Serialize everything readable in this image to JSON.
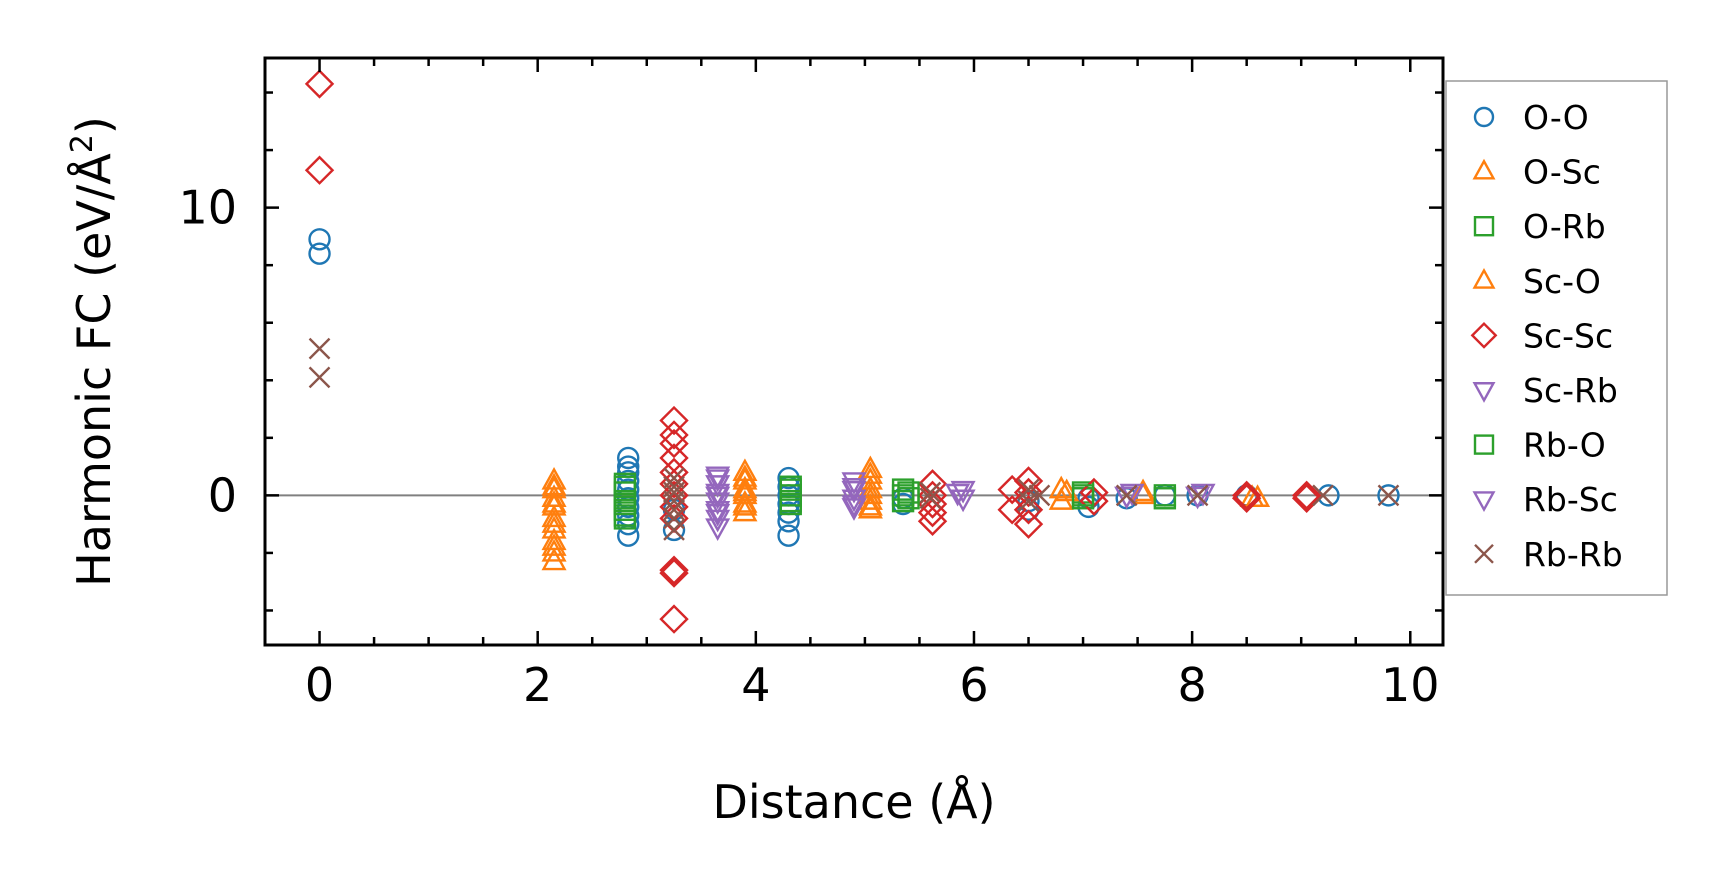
{
  "chart_data": {
    "type": "scatter",
    "xlabel": "Distance (Å)",
    "ylabel_main": "Harmonic FC (eV/Å",
    "ylabel_sup": "2",
    "ylabel_close": ")",
    "xlim": [
      -0.5,
      10.3
    ],
    "ylim": [
      -5.2,
      15.2
    ],
    "x_ticks": [
      0,
      2,
      4,
      6,
      8,
      10
    ],
    "x_tick_labels": [
      "0",
      "2",
      "4",
      "6",
      "8",
      "10"
    ],
    "y_ticks": [
      0,
      10
    ],
    "y_tick_labels": [
      "0",
      "10"
    ],
    "x_minor_step": 0.5,
    "y_minor_step": 2,
    "zero_line": true,
    "grid": false,
    "legend_position": "outside-right",
    "series": [
      {
        "name": "O-O",
        "marker": "circle",
        "color": "#1f77b4",
        "points": [
          [
            0,
            8.9
          ],
          [
            0,
            8.4
          ],
          [
            2.83,
            1.3
          ],
          [
            2.83,
            1.0
          ],
          [
            2.83,
            0.8
          ],
          [
            2.83,
            0.5
          ],
          [
            2.83,
            0.2
          ],
          [
            2.83,
            -0.1
          ],
          [
            2.83,
            -0.4
          ],
          [
            2.83,
            -0.7
          ],
          [
            2.83,
            -1.0
          ],
          [
            2.83,
            -1.4
          ],
          [
            3.25,
            -0.5
          ],
          [
            3.25,
            -1.2
          ],
          [
            4.3,
            0.6
          ],
          [
            4.3,
            0.3
          ],
          [
            4.3,
            0.0
          ],
          [
            4.3,
            -0.3
          ],
          [
            4.3,
            -0.6
          ],
          [
            4.3,
            -0.9
          ],
          [
            4.3,
            -1.4
          ],
          [
            5.35,
            -0.1
          ],
          [
            5.35,
            -0.3
          ],
          [
            6.5,
            -0.5
          ],
          [
            6.5,
            -0.2
          ],
          [
            7.05,
            -0.4
          ],
          [
            7.05,
            -0.1
          ],
          [
            7.4,
            -0.1
          ],
          [
            7.75,
            0.0
          ],
          [
            8.05,
            0.0
          ],
          [
            8.5,
            0.0
          ],
          [
            9.25,
            0.0
          ],
          [
            9.8,
            0.0
          ]
        ]
      },
      {
        "name": "O-Sc",
        "marker": "triangle-up",
        "color": "#ff7f0e",
        "points": [
          [
            2.15,
            0.5
          ],
          [
            2.15,
            0.2
          ],
          [
            2.15,
            -0.1
          ],
          [
            2.15,
            -0.4
          ],
          [
            2.15,
            -0.8
          ],
          [
            2.15,
            -1.2
          ],
          [
            2.15,
            -1.6
          ],
          [
            2.15,
            -2.0
          ],
          [
            2.15,
            -2.3
          ],
          [
            3.9,
            0.8
          ],
          [
            3.9,
            0.5
          ],
          [
            3.9,
            0.2
          ],
          [
            3.9,
            0.0
          ],
          [
            3.9,
            -0.3
          ],
          [
            3.9,
            -0.6
          ],
          [
            5.05,
            0.9
          ],
          [
            5.05,
            0.5
          ],
          [
            5.05,
            0.2
          ],
          [
            5.05,
            -0.2
          ],
          [
            5.05,
            -0.5
          ],
          [
            6.8,
            0.2
          ],
          [
            6.8,
            -0.2
          ],
          [
            7.55,
            0.1
          ],
          [
            8.55,
            -0.1
          ]
        ]
      },
      {
        "name": "O-Rb",
        "marker": "square",
        "color": "#2ca02c",
        "points": [
          [
            2.8,
            0.4
          ],
          [
            2.8,
            0.1
          ],
          [
            2.8,
            -0.2
          ],
          [
            2.8,
            -0.5
          ],
          [
            2.8,
            -0.8
          ],
          [
            4.32,
            0.3
          ],
          [
            4.32,
            0.0
          ],
          [
            4.32,
            -0.3
          ],
          [
            5.35,
            0.2
          ],
          [
            5.35,
            0.0
          ],
          [
            5.35,
            -0.2
          ],
          [
            7.0,
            0.1
          ],
          [
            7.0,
            -0.1
          ],
          [
            7.75,
            0.0
          ]
        ]
      },
      {
        "name": "Sc-O",
        "marker": "triangle-up",
        "color": "#ff7f0e",
        "points": [
          [
            2.15,
            0.3
          ],
          [
            2.15,
            -0.3
          ],
          [
            2.15,
            -1.0
          ],
          [
            2.15,
            -1.8
          ],
          [
            3.9,
            0.6
          ],
          [
            3.9,
            0.1
          ],
          [
            3.9,
            -0.4
          ],
          [
            5.05,
            0.7
          ],
          [
            5.05,
            0.0
          ],
          [
            5.05,
            -0.4
          ],
          [
            6.85,
            0.1
          ],
          [
            7.55,
            0.0
          ],
          [
            8.6,
            -0.1
          ]
        ]
      },
      {
        "name": "Sc-Sc",
        "marker": "diamond",
        "color": "#d62728",
        "points": [
          [
            0,
            14.3
          ],
          [
            0,
            11.3
          ],
          [
            3.25,
            2.6
          ],
          [
            3.25,
            2.1
          ],
          [
            3.25,
            1.8
          ],
          [
            3.25,
            1.3
          ],
          [
            3.25,
            0.8
          ],
          [
            3.25,
            0.4
          ],
          [
            3.25,
            0.0
          ],
          [
            3.25,
            -0.4
          ],
          [
            3.25,
            -0.8
          ],
          [
            3.25,
            -2.6
          ],
          [
            3.25,
            -2.7
          ],
          [
            3.25,
            -4.3
          ],
          [
            5.62,
            0.4
          ],
          [
            5.62,
            0.0
          ],
          [
            5.62,
            -0.3
          ],
          [
            5.62,
            -0.6
          ],
          [
            5.62,
            -0.9
          ],
          [
            6.35,
            0.2
          ],
          [
            6.35,
            -0.5
          ],
          [
            6.5,
            0.5
          ],
          [
            6.5,
            0.1
          ],
          [
            6.5,
            -0.5
          ],
          [
            6.5,
            -1.0
          ],
          [
            7.1,
            0.1
          ],
          [
            7.1,
            -0.2
          ],
          [
            8.5,
            0.0
          ],
          [
            8.5,
            -0.1
          ],
          [
            9.05,
            0.0
          ],
          [
            9.05,
            -0.1
          ]
        ]
      },
      {
        "name": "Sc-Rb",
        "marker": "triangle-down",
        "color": "#9467bd",
        "points": [
          [
            3.65,
            0.7
          ],
          [
            3.65,
            0.4
          ],
          [
            3.65,
            0.1
          ],
          [
            3.65,
            -0.2
          ],
          [
            3.65,
            -0.5
          ],
          [
            3.65,
            -0.8
          ],
          [
            3.65,
            -1.1
          ],
          [
            4.9,
            0.5
          ],
          [
            4.9,
            0.2
          ],
          [
            4.9,
            -0.1
          ],
          [
            4.9,
            -0.4
          ],
          [
            5.9,
            0.2
          ],
          [
            5.9,
            -0.1
          ],
          [
            7.45,
            0.1
          ],
          [
            8.1,
            0.1
          ]
        ]
      },
      {
        "name": "Rb-O",
        "marker": "square",
        "color": "#2ca02c",
        "points": [
          [
            2.8,
            0.3
          ],
          [
            2.8,
            -0.3
          ],
          [
            2.8,
            -0.7
          ],
          [
            4.32,
            0.2
          ],
          [
            4.32,
            -0.2
          ],
          [
            5.4,
            0.1
          ],
          [
            5.4,
            -0.1
          ],
          [
            7.0,
            0.0
          ],
          [
            7.75,
            -0.1
          ]
        ]
      },
      {
        "name": "Rb-Sc",
        "marker": "triangle-down",
        "color": "#9467bd",
        "points": [
          [
            3.65,
            0.6
          ],
          [
            3.65,
            0.0
          ],
          [
            3.65,
            -0.6
          ],
          [
            4.9,
            0.3
          ],
          [
            4.9,
            -0.3
          ],
          [
            5.85,
            0.1
          ],
          [
            7.4,
            0.0
          ],
          [
            8.05,
            0.0
          ]
        ]
      },
      {
        "name": "Rb-Rb",
        "marker": "x",
        "color": "#8c564b",
        "points": [
          [
            0,
            5.1
          ],
          [
            0,
            4.1
          ],
          [
            3.25,
            0.6
          ],
          [
            3.25,
            0.3
          ],
          [
            3.25,
            0.1
          ],
          [
            3.25,
            -0.2
          ],
          [
            3.25,
            -0.5
          ],
          [
            3.25,
            -0.8
          ],
          [
            3.25,
            -1.2
          ],
          [
            5.6,
            0.1
          ],
          [
            5.6,
            -0.1
          ],
          [
            6.5,
            0.2
          ],
          [
            6.5,
            -0.2
          ],
          [
            6.6,
            0.0
          ],
          [
            7.4,
            0.0
          ],
          [
            8.05,
            0.0
          ],
          [
            9.2,
            0.0
          ],
          [
            9.8,
            0.0
          ]
        ]
      }
    ]
  }
}
